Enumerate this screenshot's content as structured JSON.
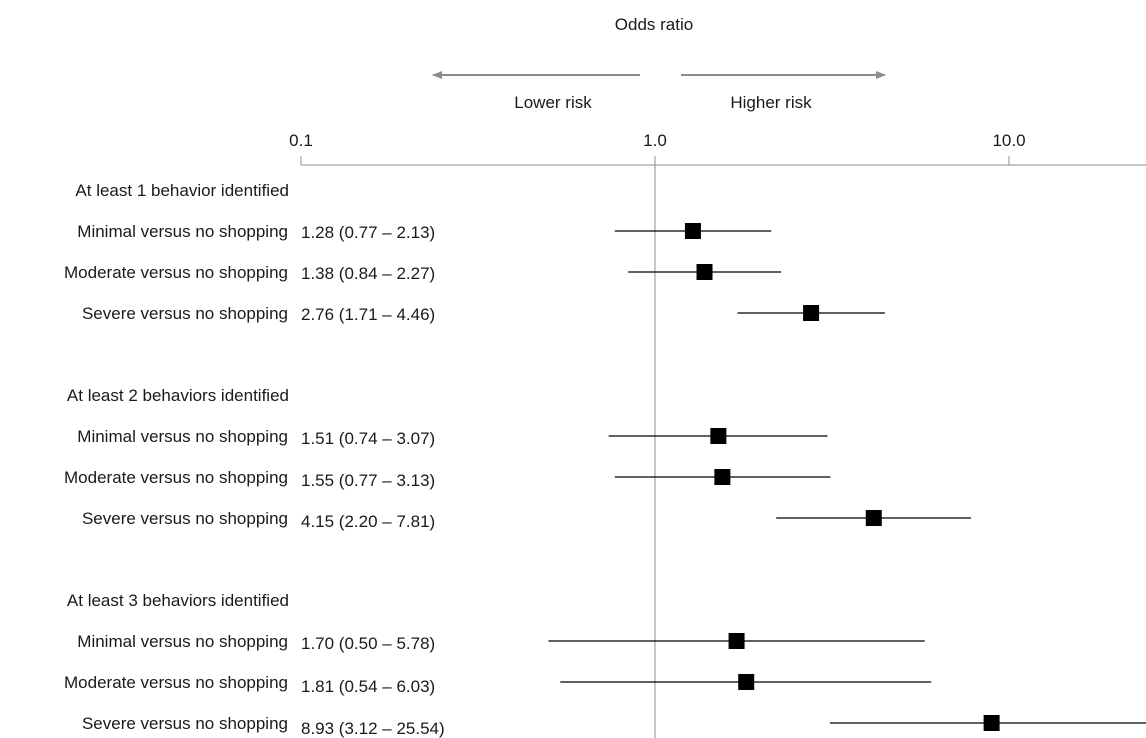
{
  "chart_data": {
    "type": "forest",
    "title": "Odds ratio",
    "scale": "log",
    "xlim": [
      0.1,
      24
    ],
    "ticks": [
      {
        "value": 0.1,
        "label": "0.1"
      },
      {
        "value": 1.0,
        "label": "1.0"
      },
      {
        "value": 10.0,
        "label": "10.0"
      }
    ],
    "reference_line": 1.0,
    "arrow_lower_label": "Lower risk",
    "arrow_higher_label": "Higher risk",
    "groups": [
      {
        "label": "At least 1 behavior identified",
        "rows": [
          {
            "label": "Minimal versus no shopping",
            "or": 1.28,
            "lo": 0.77,
            "hi": 2.13,
            "ci_text": "1.28 (0.77 – 2.13)"
          },
          {
            "label": "Moderate versus no shopping",
            "or": 1.38,
            "lo": 0.84,
            "hi": 2.27,
            "ci_text": "1.38 (0.84 – 2.27)"
          },
          {
            "label": "Severe versus no shopping",
            "or": 2.76,
            "lo": 1.71,
            "hi": 4.46,
            "ci_text": "2.76 (1.71 – 4.46)"
          }
        ]
      },
      {
        "label": "At least 2 behaviors identified",
        "rows": [
          {
            "label": "Minimal versus no shopping",
            "or": 1.51,
            "lo": 0.74,
            "hi": 3.07,
            "ci_text": "1.51 (0.74 – 3.07)"
          },
          {
            "label": "Moderate versus no shopping",
            "or": 1.55,
            "lo": 0.77,
            "hi": 3.13,
            "ci_text": "1.55 (0.77 – 3.13)"
          },
          {
            "label": "Severe versus no shopping",
            "or": 4.15,
            "lo": 2.2,
            "hi": 7.81,
            "ci_text": "4.15 (2.20 – 7.81)"
          }
        ]
      },
      {
        "label": "At least 3 behaviors identified",
        "rows": [
          {
            "label": "Minimal versus no shopping",
            "or": 1.7,
            "lo": 0.5,
            "hi": 5.78,
            "ci_text": "1.70 (0.50 – 5.78)"
          },
          {
            "label": "Moderate versus no shopping",
            "or": 1.81,
            "lo": 0.54,
            "hi": 6.03,
            "ci_text": "1.81 (0.54 – 6.03)"
          },
          {
            "label": "Severe versus no shopping",
            "or": 8.93,
            "lo": 3.12,
            "hi": 25.54,
            "ci_text": "8.93 (3.12 – 25.54)"
          }
        ]
      }
    ],
    "colors": {
      "marker": "#000000",
      "ci_line": "#000000",
      "axis": "#8c8c8c",
      "arrow": "#8c8c8c",
      "text": "#1a1a1a"
    }
  }
}
